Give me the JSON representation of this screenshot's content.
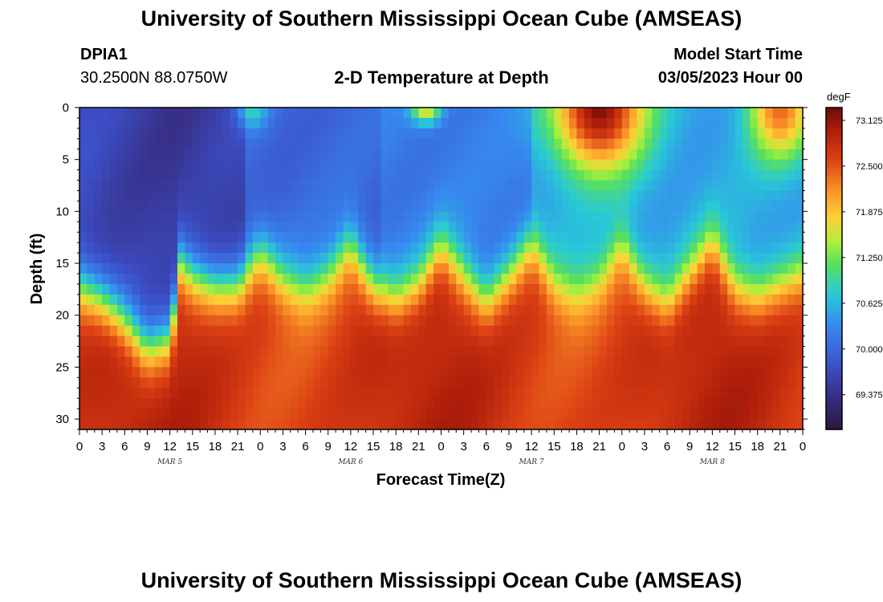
{
  "header": {
    "title": "University of Southern Mississippi Ocean Cube (AMSEAS)",
    "station_id": "DPIA1",
    "coords": "30.2500N  88.0750W",
    "plot_title": "2-D Temperature at Depth",
    "model_start_label": "Model Start Time",
    "model_start_value": "03/05/2023 Hour 00"
  },
  "footer": {
    "title": "University of Southern Mississippi Ocean Cube (AMSEAS)"
  },
  "chart_data": {
    "type": "heatmap",
    "title": "2-D Temperature at Depth",
    "xlabel": "Forecast Time(Z)",
    "ylabel": "Depth (ft)",
    "x_hours_range": [
      0,
      96
    ],
    "ylim": [
      0,
      31
    ],
    "x_ticks": [
      "0",
      "3",
      "6",
      "9",
      "12",
      "15",
      "18",
      "21",
      "0",
      "3",
      "6",
      "9",
      "12",
      "15",
      "18",
      "21",
      "0",
      "3",
      "6",
      "9",
      "12",
      "15",
      "18",
      "21",
      "0",
      "3",
      "6",
      "9",
      "12",
      "15",
      "18",
      "21",
      "0"
    ],
    "y_ticks": [
      "0",
      "5",
      "10",
      "15",
      "20",
      "25",
      "30"
    ],
    "day_labels": [
      "MAR 5",
      "MAR 6",
      "MAR 7",
      "MAR 8"
    ],
    "colorbar": {
      "unit": "degF",
      "min": 68.9,
      "max": 73.3,
      "ticks": [
        "73.125",
        "72.500",
        "71.875",
        "71.250",
        "70.625",
        "70.000",
        "69.375"
      ]
    },
    "thermocline_depth_ft": [
      [
        0,
        17
      ],
      [
        3,
        18.5
      ],
      [
        6,
        20.5
      ],
      [
        9,
        23
      ],
      [
        12,
        22
      ],
      [
        13.5,
        15
      ],
      [
        15,
        16
      ],
      [
        18,
        17
      ],
      [
        21,
        17
      ],
      [
        24,
        14
      ],
      [
        27,
        16.5
      ],
      [
        30,
        17.5
      ],
      [
        33,
        16
      ],
      [
        36,
        13
      ],
      [
        39,
        17
      ],
      [
        42,
        18.5
      ],
      [
        45,
        17
      ],
      [
        48,
        13.5
      ],
      [
        51,
        16
      ],
      [
        54,
        18.5
      ],
      [
        57,
        16
      ],
      [
        60,
        13
      ],
      [
        63,
        17
      ],
      [
        66,
        18
      ],
      [
        69,
        16.5
      ],
      [
        72,
        13
      ],
      [
        75,
        17
      ],
      [
        78,
        19
      ],
      [
        81,
        16
      ],
      [
        84,
        13
      ],
      [
        87,
        17
      ],
      [
        90,
        18
      ],
      [
        93,
        17
      ],
      [
        96,
        16
      ]
    ],
    "surface_warm_events": [
      {
        "center_hour": 23,
        "half_width_hours": 2,
        "depth_ft": 2,
        "temp_degF": 70.9
      },
      {
        "center_hour": 46,
        "half_width_hours": 2,
        "depth_ft": 1.5,
        "temp_degF": 71.8
      },
      {
        "center_hour": 69,
        "half_width_hours": 6,
        "depth_ft": 6,
        "temp_degF": 73.2
      },
      {
        "center_hour": 93,
        "half_width_hours": 4,
        "depth_ft": 5,
        "temp_degF": 72.4
      }
    ]
  }
}
